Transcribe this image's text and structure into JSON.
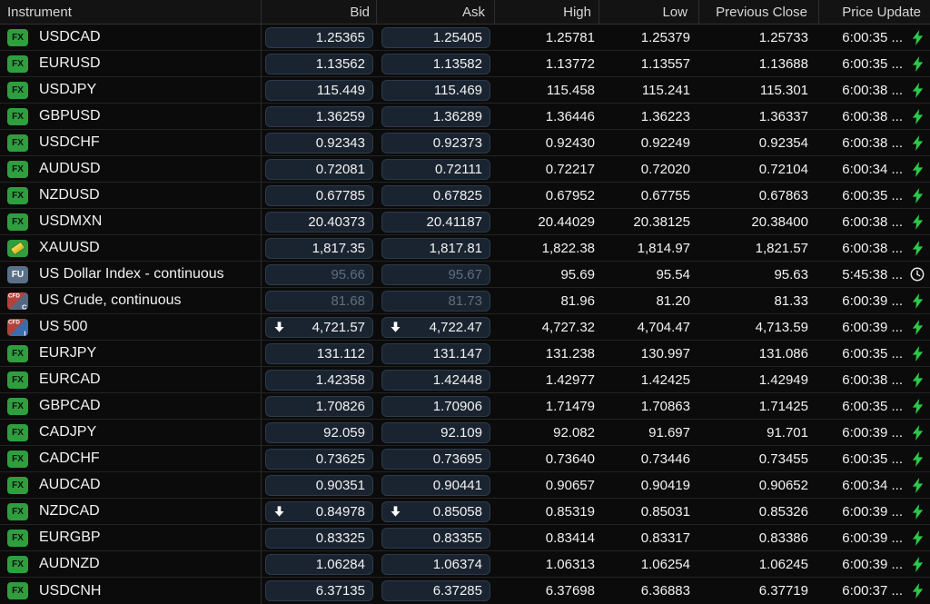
{
  "header": {
    "columns": [
      "Instrument",
      "Bid",
      "Ask",
      "High",
      "Low",
      "Previous Close",
      "Price Update"
    ]
  },
  "colors": {
    "accent_green": "#2bc948",
    "badge_fx_green": "#2f9e3f",
    "badge_fu_slate": "#5b7089",
    "badge_cfd_red": "#b5413a",
    "badge_cfd_blue": "#3d6cab",
    "badge_cfd_slate": "#536880",
    "gold": "#e8c63a",
    "dim_text": "#5f6e7e",
    "pill_bg": "#1a2430",
    "row_bg": "#0b0b0b"
  },
  "icons": {
    "live": "lightning-bolt-icon",
    "delayed": "clock-icon",
    "down": "down-arrow-icon"
  },
  "rows": [
    {
      "badge": {
        "type": "fx",
        "label": "FX"
      },
      "name": "USDCAD",
      "bid": "1.25365",
      "ask": "1.25405",
      "high": "1.25781",
      "low": "1.25379",
      "prev_close": "1.25733",
      "time": "6:00:35 ...",
      "status": "live",
      "bid_arrow": false,
      "ask_arrow": false,
      "dim": false
    },
    {
      "badge": {
        "type": "fx",
        "label": "FX"
      },
      "name": "EURUSD",
      "bid": "1.13562",
      "ask": "1.13582",
      "high": "1.13772",
      "low": "1.13557",
      "prev_close": "1.13688",
      "time": "6:00:35 ...",
      "status": "live",
      "bid_arrow": false,
      "ask_arrow": false,
      "dim": false
    },
    {
      "badge": {
        "type": "fx",
        "label": "FX"
      },
      "name": "USDJPY",
      "bid": "115.449",
      "ask": "115.469",
      "high": "115.458",
      "low": "115.241",
      "prev_close": "115.301",
      "time": "6:00:38 ...",
      "status": "live",
      "bid_arrow": false,
      "ask_arrow": false,
      "dim": false
    },
    {
      "badge": {
        "type": "fx",
        "label": "FX"
      },
      "name": "GBPUSD",
      "bid": "1.36259",
      "ask": "1.36289",
      "high": "1.36446",
      "low": "1.36223",
      "prev_close": "1.36337",
      "time": "6:00:38 ...",
      "status": "live",
      "bid_arrow": false,
      "ask_arrow": false,
      "dim": false
    },
    {
      "badge": {
        "type": "fx",
        "label": "FX"
      },
      "name": "USDCHF",
      "bid": "0.92343",
      "ask": "0.92373",
      "high": "0.92430",
      "low": "0.92249",
      "prev_close": "0.92354",
      "time": "6:00:38 ...",
      "status": "live",
      "bid_arrow": false,
      "ask_arrow": false,
      "dim": false
    },
    {
      "badge": {
        "type": "fx",
        "label": "FX"
      },
      "name": "AUDUSD",
      "bid": "0.72081",
      "ask": "0.72111",
      "high": "0.72217",
      "low": "0.72020",
      "prev_close": "0.72104",
      "time": "6:00:34 ...",
      "status": "live",
      "bid_arrow": false,
      "ask_arrow": false,
      "dim": false
    },
    {
      "badge": {
        "type": "fx",
        "label": "FX"
      },
      "name": "NZDUSD",
      "bid": "0.67785",
      "ask": "0.67825",
      "high": "0.67952",
      "low": "0.67755",
      "prev_close": "0.67863",
      "time": "6:00:35 ...",
      "status": "live",
      "bid_arrow": false,
      "ask_arrow": false,
      "dim": false
    },
    {
      "badge": {
        "type": "fx",
        "label": "FX"
      },
      "name": "USDMXN",
      "bid": "20.40373",
      "ask": "20.41187",
      "high": "20.44029",
      "low": "20.38125",
      "prev_close": "20.38400",
      "time": "6:00:38 ...",
      "status": "live",
      "bid_arrow": false,
      "ask_arrow": false,
      "dim": false
    },
    {
      "badge": {
        "type": "gold",
        "label": ""
      },
      "name": "XAUUSD",
      "bid": "1,817.35",
      "ask": "1,817.81",
      "high": "1,822.38",
      "low": "1,814.97",
      "prev_close": "1,821.57",
      "time": "6:00:38 ...",
      "status": "live",
      "bid_arrow": false,
      "ask_arrow": false,
      "dim": false
    },
    {
      "badge": {
        "type": "fu",
        "label": "FU"
      },
      "name": "US Dollar Index - continuous",
      "bid": "95.66",
      "ask": "95.67",
      "high": "95.69",
      "low": "95.54",
      "prev_close": "95.63",
      "time": "5:45:38 ...",
      "status": "delayed",
      "bid_arrow": false,
      "ask_arrow": false,
      "dim": true
    },
    {
      "badge": {
        "type": "cfd",
        "label": "CFD",
        "sub": "C"
      },
      "name": "US Crude, continuous",
      "bid": "81.68",
      "ask": "81.73",
      "high": "81.96",
      "low": "81.20",
      "prev_close": "81.33",
      "time": "6:00:39 ...",
      "status": "live",
      "bid_arrow": false,
      "ask_arrow": false,
      "dim": true
    },
    {
      "badge": {
        "type": "cfd",
        "label": "CFD",
        "sub": "I"
      },
      "name": "US 500",
      "bid": "4,721.57",
      "ask": "4,722.47",
      "high": "4,727.32",
      "low": "4,704.47",
      "prev_close": "4,713.59",
      "time": "6:00:39 ...",
      "status": "live",
      "bid_arrow": true,
      "ask_arrow": true,
      "dim": false
    },
    {
      "badge": {
        "type": "fx",
        "label": "FX"
      },
      "name": "EURJPY",
      "bid": "131.112",
      "ask": "131.147",
      "high": "131.238",
      "low": "130.997",
      "prev_close": "131.086",
      "time": "6:00:35 ...",
      "status": "live",
      "bid_arrow": false,
      "ask_arrow": false,
      "dim": false
    },
    {
      "badge": {
        "type": "fx",
        "label": "FX"
      },
      "name": "EURCAD",
      "bid": "1.42358",
      "ask": "1.42448",
      "high": "1.42977",
      "low": "1.42425",
      "prev_close": "1.42949",
      "time": "6:00:38 ...",
      "status": "live",
      "bid_arrow": false,
      "ask_arrow": false,
      "dim": false
    },
    {
      "badge": {
        "type": "fx",
        "label": "FX"
      },
      "name": "GBPCAD",
      "bid": "1.70826",
      "ask": "1.70906",
      "high": "1.71479",
      "low": "1.70863",
      "prev_close": "1.71425",
      "time": "6:00:35 ...",
      "status": "live",
      "bid_arrow": false,
      "ask_arrow": false,
      "dim": false
    },
    {
      "badge": {
        "type": "fx",
        "label": "FX"
      },
      "name": "CADJPY",
      "bid": "92.059",
      "ask": "92.109",
      "high": "92.082",
      "low": "91.697",
      "prev_close": "91.701",
      "time": "6:00:39 ...",
      "status": "live",
      "bid_arrow": false,
      "ask_arrow": false,
      "dim": false
    },
    {
      "badge": {
        "type": "fx",
        "label": "FX"
      },
      "name": "CADCHF",
      "bid": "0.73625",
      "ask": "0.73695",
      "high": "0.73640",
      "low": "0.73446",
      "prev_close": "0.73455",
      "time": "6:00:35 ...",
      "status": "live",
      "bid_arrow": false,
      "ask_arrow": false,
      "dim": false
    },
    {
      "badge": {
        "type": "fx",
        "label": "FX"
      },
      "name": "AUDCAD",
      "bid": "0.90351",
      "ask": "0.90441",
      "high": "0.90657",
      "low": "0.90419",
      "prev_close": "0.90652",
      "time": "6:00:34 ...",
      "status": "live",
      "bid_arrow": false,
      "ask_arrow": false,
      "dim": false
    },
    {
      "badge": {
        "type": "fx",
        "label": "FX"
      },
      "name": "NZDCAD",
      "bid": "0.84978",
      "ask": "0.85058",
      "high": "0.85319",
      "low": "0.85031",
      "prev_close": "0.85326",
      "time": "6:00:39 ...",
      "status": "live",
      "bid_arrow": true,
      "ask_arrow": true,
      "dim": false
    },
    {
      "badge": {
        "type": "fx",
        "label": "FX"
      },
      "name": "EURGBP",
      "bid": "0.83325",
      "ask": "0.83355",
      "high": "0.83414",
      "low": "0.83317",
      "prev_close": "0.83386",
      "time": "6:00:39 ...",
      "status": "live",
      "bid_arrow": false,
      "ask_arrow": false,
      "dim": false
    },
    {
      "badge": {
        "type": "fx",
        "label": "FX"
      },
      "name": "AUDNZD",
      "bid": "1.06284",
      "ask": "1.06374",
      "high": "1.06313",
      "low": "1.06254",
      "prev_close": "1.06245",
      "time": "6:00:39 ...",
      "status": "live",
      "bid_arrow": false,
      "ask_arrow": false,
      "dim": false
    },
    {
      "badge": {
        "type": "fx",
        "label": "FX"
      },
      "name": "USDCNH",
      "bid": "6.37135",
      "ask": "6.37285",
      "high": "6.37698",
      "low": "6.36883",
      "prev_close": "6.37719",
      "time": "6:00:37 ...",
      "status": "live",
      "bid_arrow": false,
      "ask_arrow": false,
      "dim": false
    }
  ]
}
